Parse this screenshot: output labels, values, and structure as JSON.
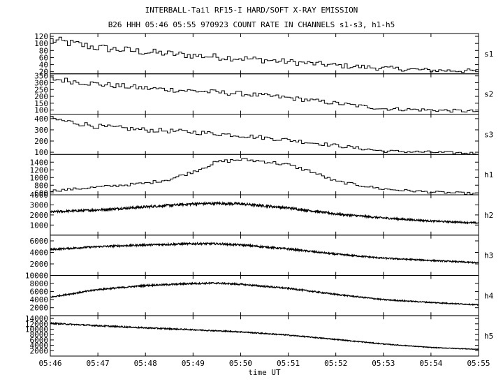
{
  "title_line1": "INTERBALL-Tail RF15-I HARD/SOFT X-RAY EMISSION",
  "title_line2": "B26 HHH 05:46 05:55 970923  COUNT RATE IN CHANNELS s1-s3, h1-h5",
  "colors": {
    "line": "#000000",
    "background": "#ffffff"
  },
  "chart_data": {
    "type": "line",
    "xlabel": "time UT",
    "x_ticks": [
      "05:46",
      "05:47",
      "05:48",
      "05:49",
      "05:50",
      "05:51",
      "05:52",
      "05:53",
      "05:54",
      "05:55"
    ],
    "xlim": [
      "05:46",
      "05:55"
    ],
    "grid": false,
    "panels": [
      {
        "name": "s1",
        "style": "step",
        "ylim": [
          14,
          128
        ],
        "yticks": [
          20,
          40,
          60,
          80,
          100,
          120
        ],
        "x": [
          "05:46",
          "05:47",
          "05:48",
          "05:49",
          "05:50",
          "05:51",
          "05:52",
          "05:53",
          "05:54",
          "05:55"
        ],
        "y": [
          110,
          88,
          76,
          66,
          58,
          48,
          38,
          30,
          24,
          22
        ]
      },
      {
        "name": "s2",
        "style": "step",
        "ylim": [
          70,
          365
        ],
        "yticks": [
          100,
          150,
          200,
          250,
          300,
          350
        ],
        "x": [
          "05:46",
          "05:47",
          "05:48",
          "05:49",
          "05:50",
          "05:51",
          "05:52",
          "05:53",
          "05:54",
          "05:55"
        ],
        "y": [
          330,
          290,
          260,
          240,
          220,
          190,
          150,
          110,
          100,
          90
        ]
      },
      {
        "name": "s3",
        "style": "step",
        "ylim": [
          80,
          440
        ],
        "yticks": [
          100,
          200,
          300,
          400
        ],
        "x": [
          "05:46",
          "05:47",
          "05:48",
          "05:49",
          "05:50",
          "05:51",
          "05:52",
          "05:53",
          "05:54",
          "05:55"
        ],
        "y": [
          400,
          330,
          300,
          280,
          250,
          210,
          160,
          110,
          100,
          90
        ]
      },
      {
        "name": "h1",
        "style": "step",
        "ylim": [
          550,
          1600
        ],
        "yticks": [
          600,
          800,
          1000,
          1200,
          1400
        ],
        "x": [
          "05:46",
          "05:47",
          "05:48",
          "05:48:30",
          "05:49",
          "05:49:30",
          "05:50",
          "05:50:30",
          "05:51",
          "05:51:30",
          "05:52",
          "05:53",
          "05:54",
          "05:55"
        ],
        "y": [
          650,
          750,
          850,
          950,
          1150,
          1400,
          1470,
          1420,
          1330,
          1150,
          900,
          700,
          620,
          580
        ]
      },
      {
        "name": "h2",
        "style": "noisy",
        "ylim": [
          0,
          4000
        ],
        "yticks": [
          1000,
          2000,
          3000,
          4000
        ],
        "x": [
          "05:46",
          "05:47",
          "05:48",
          "05:49",
          "05:49:30",
          "05:50",
          "05:51",
          "05:52",
          "05:53",
          "05:54",
          "05:55"
        ],
        "y": [
          2300,
          2500,
          2800,
          3100,
          3150,
          3100,
          2700,
          2100,
          1700,
          1400,
          1200
        ]
      },
      {
        "name": "h3",
        "style": "noisy",
        "ylim": [
          0,
          7000
        ],
        "yticks": [
          2000,
          4000,
          6000
        ],
        "x": [
          "05:46",
          "05:47",
          "05:48",
          "05:49",
          "05:49:30",
          "05:50",
          "05:51",
          "05:52",
          "05:53",
          "05:54",
          "05:55"
        ],
        "y": [
          4500,
          5000,
          5300,
          5500,
          5500,
          5300,
          4600,
          3700,
          3000,
          2600,
          2200
        ]
      },
      {
        "name": "h4",
        "style": "noisy",
        "ylim": [
          0,
          10000
        ],
        "yticks": [
          2000,
          4000,
          6000,
          8000,
          10000
        ],
        "x": [
          "05:46",
          "05:47",
          "05:48",
          "05:49",
          "05:49:30",
          "05:50",
          "05:51",
          "05:52",
          "05:53",
          "05:54",
          "05:55"
        ],
        "y": [
          4600,
          6500,
          7500,
          8000,
          8100,
          7800,
          6800,
          5300,
          4000,
          3300,
          2700
        ]
      },
      {
        "name": "h5",
        "style": "noisy",
        "ylim": [
          0,
          15000
        ],
        "yticks": [
          2000,
          4000,
          6000,
          8000,
          10000,
          12000,
          14000
        ],
        "x": [
          "05:46",
          "05:47",
          "05:48",
          "05:49",
          "05:50",
          "05:51",
          "05:52",
          "05:53",
          "05:54",
          "05:55"
        ],
        "y": [
          12200,
          11300,
          10500,
          9800,
          9000,
          7800,
          6200,
          4500,
          3200,
          2500
        ]
      }
    ]
  }
}
